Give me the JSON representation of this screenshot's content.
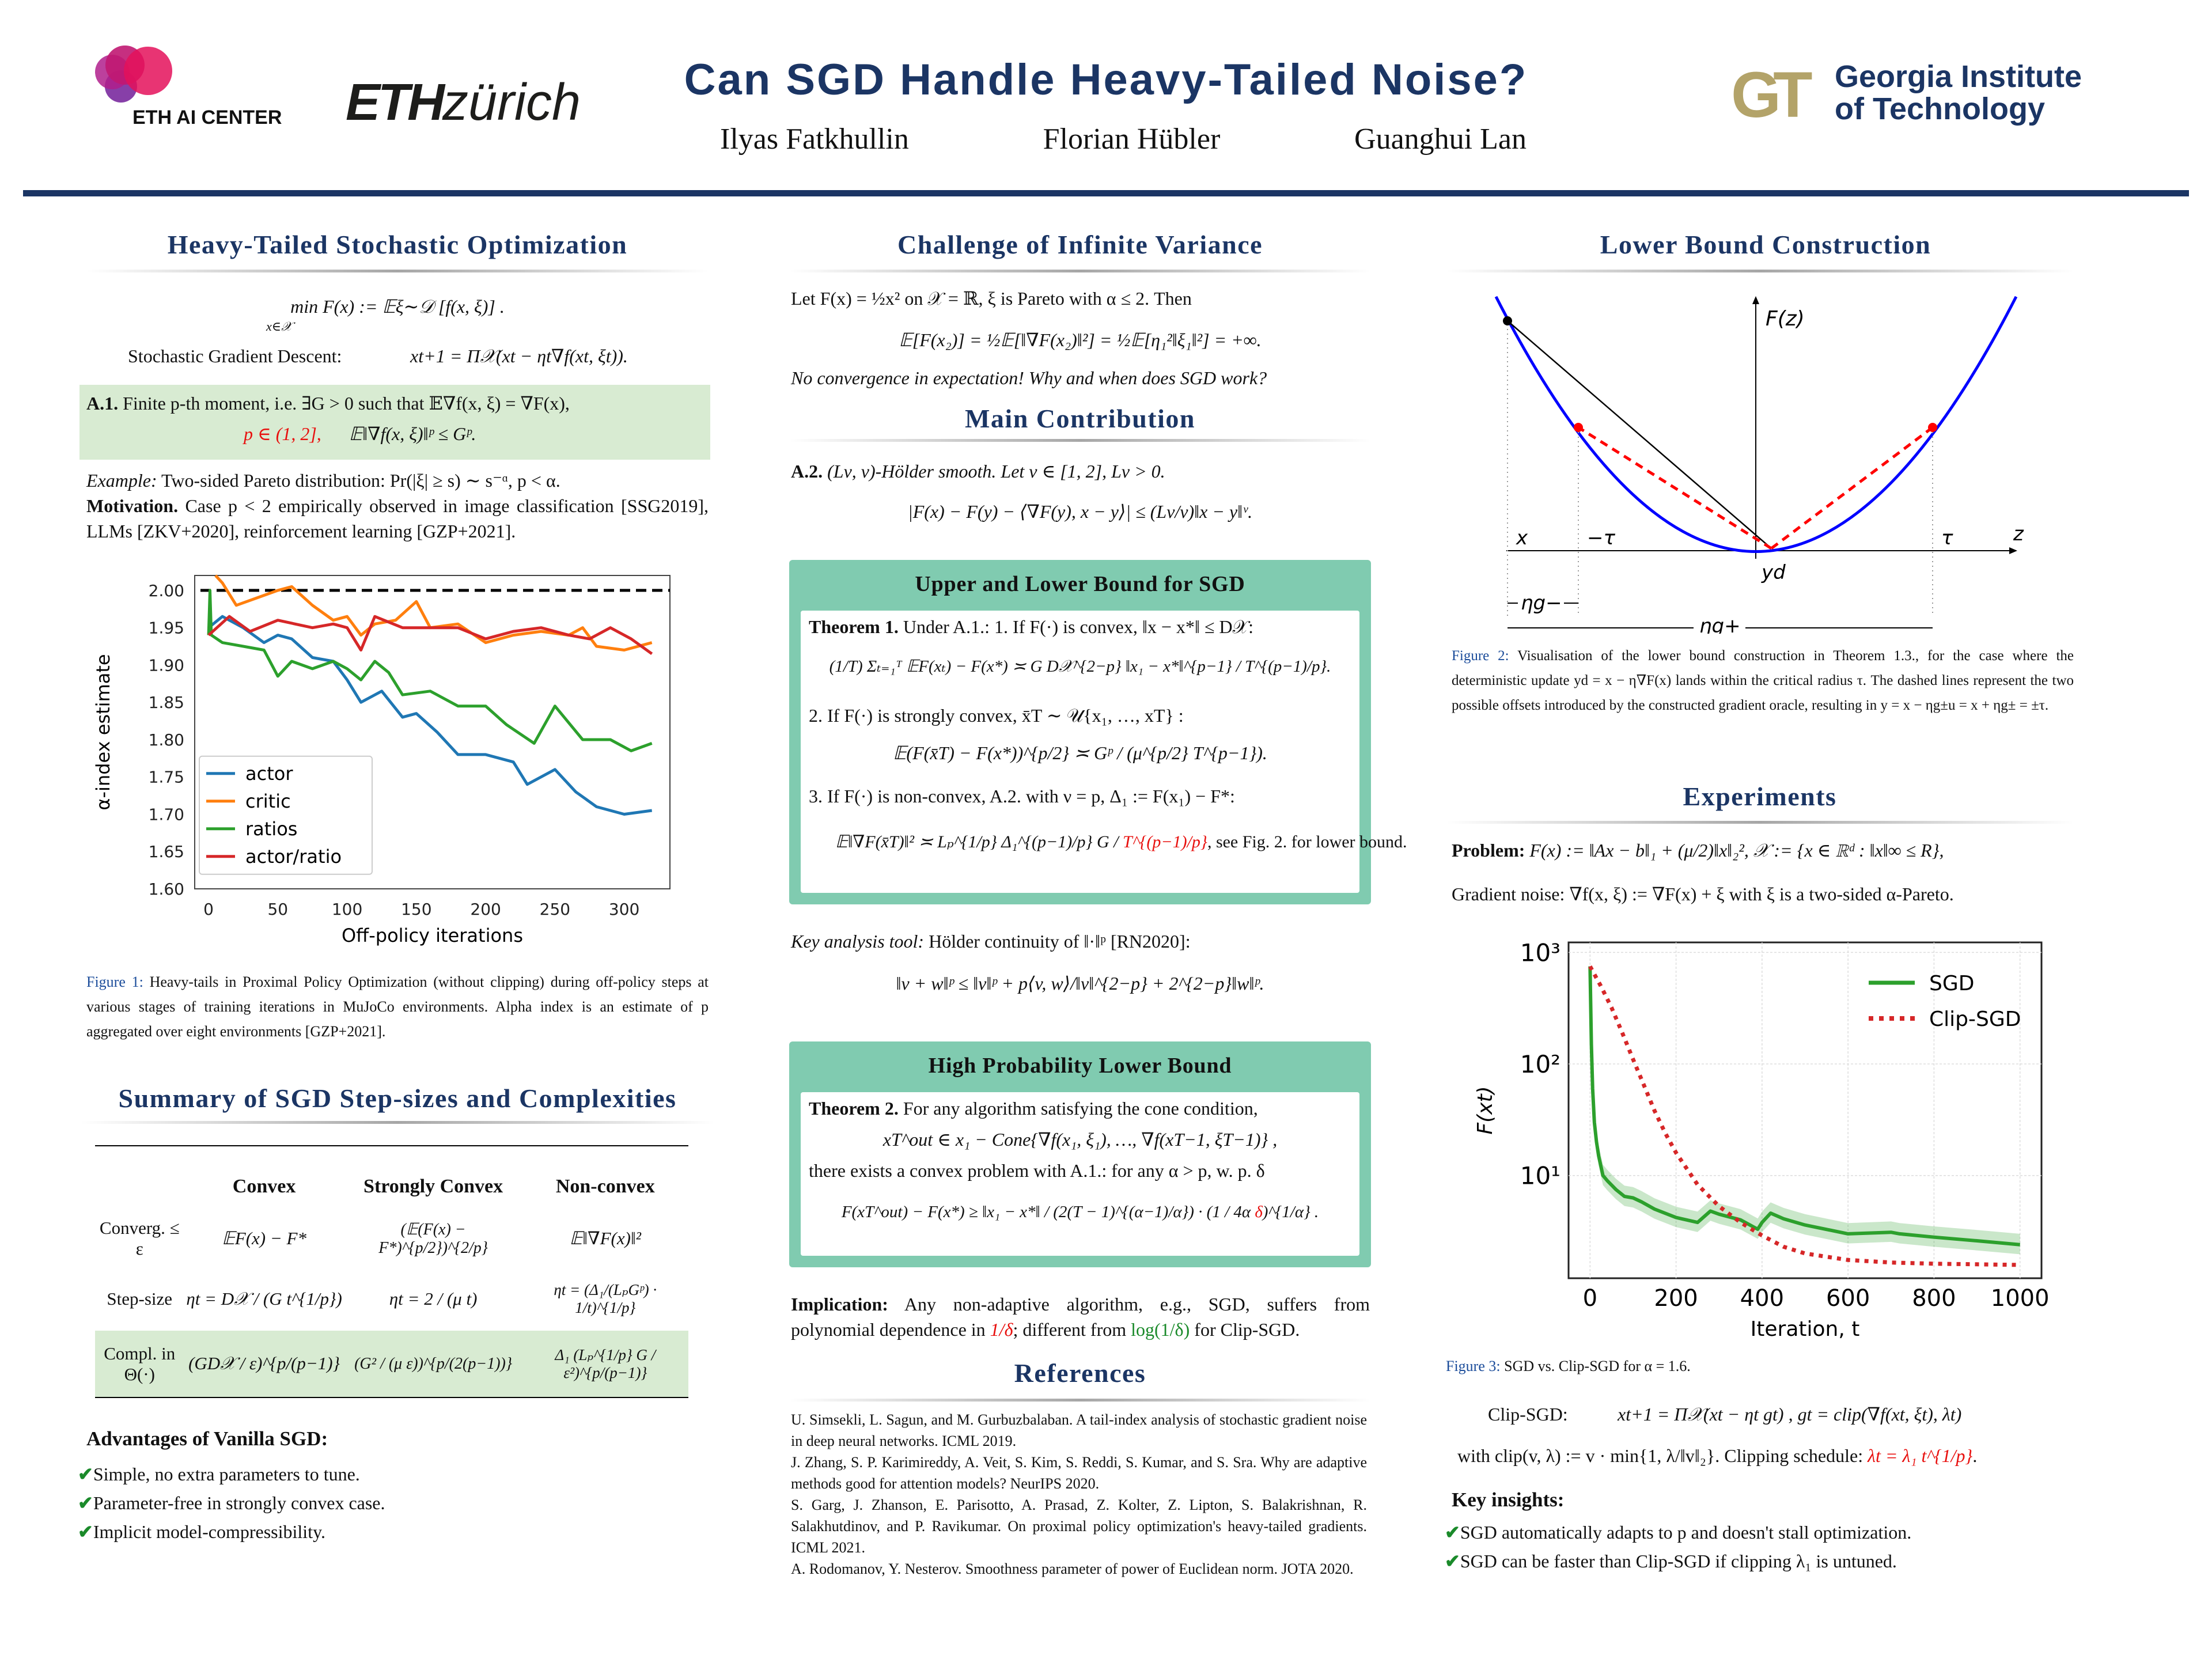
{
  "header": {
    "title": "Can SGD Handle Heavy-Tailed Noise?",
    "authors": [
      "Ilyas Fatkhullin",
      "Florian Hübler",
      "Guanghui Lan"
    ],
    "logos": {
      "eth_ai_center": "ETH AI CENTER",
      "eth_zurich_bold": "ETH",
      "eth_zurich_light": "zürich",
      "gt_mark": "GT",
      "gt_name_1": "Georgia Institute",
      "gt_name_2": "of Technology"
    },
    "colors": {
      "navy": "#1b3564",
      "gold": "#b3a369",
      "teal": "#80cbb0",
      "green_box": "#d8ebd2"
    }
  },
  "col1": {
    "title": "Heavy-Tailed Stochastic Optimization",
    "eq_min": "min    F(x) := 𝔼ξ∼𝒟 [f(x, ξ)] .",
    "eq_min_sub": "x∈𝒳",
    "sgd_label": "Stochastic Gradient Descent:",
    "sgd_eq": "xt+1 = Π𝒳(xt − ηt∇f(xt, ξt)).",
    "a1_label": "A.1.",
    "a1_text": "Finite p-th moment, i.e. ∃G > 0 such that 𝔼∇f(x, ξ) = ∇F(x),",
    "a1_red": "p ∈ (1, 2],",
    "a1_eq": "𝔼‖∇f(x, ξ)‖ᵖ ≤ Gᵖ.",
    "example_label": "Example:",
    "example_text": "Two-sided Pareto distribution: Pr(|ξ| ≥ s) ∼ s⁻ᵅ, p < α.",
    "motivation_label": "Motivation.",
    "motivation_text": "Case p < 2 empirically observed in image classification [SSG2019], LLMs [ZKV+2020], reinforcement learning [GZP+2021].",
    "fig1_label": "Figure 1:",
    "fig1_caption": "Heavy-tails in Proximal Policy Optimization (without clipping) during off-policy steps at various stages of training iterations in MuJoCo environments. Alpha index is an estimate of p aggregated over eight environments [GZP+2021].",
    "summary_title": "Summary of SGD Step-sizes and Complexities",
    "table": {
      "headers": [
        "",
        "Convex",
        "Strongly Convex",
        "Non-convex"
      ],
      "rows": [
        {
          "label": "Converg. ≤ ε",
          "cells": [
            "𝔼F(x) − F*",
            "(𝔼(F(x) − F*)^{p/2})^{2/p}",
            "𝔼‖∇F(x)‖²"
          ]
        },
        {
          "label": "Step-size",
          "cells": [
            "ηt = D𝒳 / (G t^{1/p})",
            "ηt = 2 / (μ t)",
            "ηt = (Δ₁/(LₚGᵖ) · 1/t)^{1/p}"
          ]
        },
        {
          "label": "Compl. in Θ(·)",
          "cells": [
            "(GD𝒳 / ε)^{p/(p−1)}",
            "(G² / (μ ε))^{p/(2(p−1))}",
            "Δ₁ (Lₚ^{1/p} G / ε²)^{p/(p−1)}"
          ]
        }
      ]
    },
    "advantages_title": "Advantages of Vanilla SGD:",
    "advantages": [
      "Simple, no extra parameters to tune.",
      "Parameter-free in strongly convex case.",
      "Implicit model-compressibility."
    ]
  },
  "col2": {
    "title": "Challenge of Infinite Variance",
    "let_line": "Let F(x) = ½x² on 𝒳 = ℝ, ξ is Pareto with α ≤ 2. Then",
    "exp_eq": "𝔼[F(x₂)] = ½𝔼[‖∇F(x₂)‖²] = ½𝔼[η₁²‖ξ₁‖²] = +∞.",
    "no_conv": "No convergence in expectation! Why and when does SGD work?",
    "main_title": "Main Contribution",
    "a2_label": "A.2.",
    "a2_text": "(Lν, ν)-Hölder smooth. Let ν ∈ [1, 2], Lν > 0.",
    "a2_eq": "|F(x) − F(y) − ⟨∇F(y), x − y⟩| ≤ (Lν/ν)‖x − y‖ᵛ.",
    "box1_title": "Upper and Lower Bound for SGD",
    "thm1_label": "Theorem 1.",
    "thm1_intro": "Under A.1.: 1. If F(·) is convex, ‖x − x*‖ ≤ D𝒳:",
    "thm1_eq1": "(1/T) Σₜ₌₁ᵀ 𝔼F(xₜ) − F(x*) ≍ G D𝒳^{2−p} ‖x₁ − x*‖^{p−1} / T^{(p−1)/p}.",
    "thm1_item2": "2. If F(·) is strongly convex, x̄T ∼ 𝒰{x₁, …, xT} :",
    "thm1_eq2": "𝔼(F(x̄T) − F(x*))^{p/2} ≍ Gᵖ / (μ^{p/2} T^{p−1}).",
    "thm1_item3": "3. If F(·) is non-convex, A.2. with ν = p, Δ₁ := F(x₁) − F*:",
    "thm1_eq3": "𝔼‖∇F(x̄T)‖² ≍ Lₚ^{1/p} Δ₁^{(p−1)/p} G /",
    "thm1_eq3_red": "T^{(p−1)/p}",
    "thm1_eq3_tail": ",   see Fig. 2. for lower bound.",
    "key_tool_label": "Key analysis tool:",
    "key_tool_text": "Hölder continuity of ‖·‖ᵖ [RN2020]:",
    "key_tool_eq": "‖v + w‖ᵖ ≤ ‖v‖ᵖ + p⟨v, w⟩/‖v‖^{2−p} + 2^{2−p}‖w‖ᵖ.",
    "box2_title": "High Probability Lower Bound",
    "thm2_label": "Theorem 2.",
    "thm2_intro": "For any algorithm satisfying the cone condition,",
    "thm2_eq1": "xT^out ∈ x₁ − Cone{∇f(x₁, ξ₁), …, ∇f(xT−1, ξT−1)} ,",
    "thm2_line": "there exists a convex problem with A.1.: for any α > p, w. p.  δ",
    "thm2_eq2": "F(xT^out) − F(x*) ≥ ‖x₁ − x*‖ / (2(T − 1)^{(α−1)/α}) · (1 / 4α",
    "thm2_eq2_red": "δ",
    "thm2_eq2_tail": ")^{1/α} .",
    "impl_label": "Implication:",
    "impl_text_1": "Any non-adaptive algorithm, e.g., SGD, suffers from polynomial dependence in",
    "impl_red": "1/δ",
    "impl_text_2": "; different from",
    "impl_green": "log(1/δ)",
    "impl_text_3": "for Clip-SGD.",
    "refs_title": "References",
    "refs": [
      "U. Simsekli, L. Sagun, and M. Gurbuzbalaban. A tail-index analysis of stochastic gradient noise in deep neural networks. ICML 2019.",
      "J. Zhang, S. P. Karimireddy, A. Veit, S. Kim, S. Reddi, S. Kumar, and S. Sra. Why are adaptive methods good for attention models? NeurIPS 2020.",
      "S. Garg, J. Zhanson, E. Parisotto, A. Prasad, Z. Kolter, Z. Lipton, S. Balakrishnan, R. Salakhutdinov, and P. Ravikumar. On proximal policy optimization's heavy-tailed gradients. ICML 2021.",
      "A. Rodomanov, Y. Nesterov. Smoothness parameter of power of Euclidean norm. JOTA 2020."
    ]
  },
  "col3": {
    "title": "Lower Bound Construction",
    "figure2": {
      "labels": {
        "fz": "F(z)",
        "x": "x",
        "neg_tau": "−τ",
        "tau": "τ",
        "z": "z",
        "yd": "yd",
        "eta_g_minus": "ηg−",
        "eta_g_plus": "ηg+"
      }
    },
    "fig2_label": "Figure 2:",
    "fig2_caption": "Visualisation of the lower bound construction in Theorem 1.3., for the case where the deterministic update yd = x − η∇F(x) lands within the critical radius τ. The dashed lines represent the two possible offsets introduced by the constructed gradient oracle, resulting in y = x − ηg±u = x + ηg± = ±τ.",
    "exp_title": "Experiments",
    "problem_label": "Problem:",
    "problem_text": "F(x) := ‖Ax − b‖₁ + (μ/2)‖x‖₂²,   𝒳 := {x ∈ ℝᵈ : ‖x‖∞ ≤ R},",
    "noise_text": "Gradient noise: ∇f(x, ξ) := ∇F(x) + ξ with ξ is a two-sided α-Pareto.",
    "fig3_label": "Figure 3:",
    "fig3_caption": "SGD vs. Clip-SGD for α = 1.6.",
    "clip_label": "Clip-SGD:",
    "clip_eq": "xt+1 = Π𝒳(xt − ηt gt) ,    gt = clip(∇f(xt, ξt), λt)",
    "clip_def": "with clip(v, λ) := v · min{1, λ/‖v‖₂}. Clipping schedule:",
    "clip_sched": "λt = λ₁ t^{1/p}",
    "insights_title": "Key insights:",
    "insights": [
      "SGD automatically adapts to p and doesn't stall optimization.",
      "SGD can be faster than Clip-SGD if clipping λ₁ is untuned."
    ]
  },
  "chart_data": [
    {
      "type": "line",
      "title": "",
      "xlabel": "Off-policy iterations",
      "ylabel": "α-index estimate",
      "xlim": [
        -10,
        333
      ],
      "ylim": [
        1.6,
        2.02
      ],
      "xticks": [
        0,
        50,
        100,
        150,
        200,
        250,
        300
      ],
      "xtick_labels": [
        "0",
        "50",
        "100",
        "150",
        "200",
        "250",
        "300"
      ],
      "yticks": [
        1.6,
        1.65,
        1.7,
        1.75,
        1.8,
        1.85,
        1.9,
        1.95,
        2.0
      ],
      "ytick_labels": [
        "1.60",
        "1.65",
        "1.70",
        "1.75",
        "1.80",
        "1.85",
        "1.90",
        "1.95",
        "2.00"
      ],
      "reference_line": {
        "y": 2.0,
        "style": "dashed",
        "color": "#000000"
      },
      "legend_position": "lower-left",
      "series": [
        {
          "name": "actor",
          "color": "#1f77b4",
          "x": [
            0,
            10,
            25,
            40,
            50,
            60,
            75,
            90,
            100,
            110,
            125,
            140,
            150,
            165,
            180,
            200,
            220,
            230,
            250,
            265,
            280,
            300,
            320
          ],
          "y": [
            1.95,
            1.965,
            1.95,
            1.93,
            1.94,
            1.935,
            1.91,
            1.905,
            1.88,
            1.85,
            1.865,
            1.83,
            1.835,
            1.81,
            1.78,
            1.78,
            1.77,
            1.74,
            1.76,
            1.73,
            1.71,
            1.7,
            1.705
          ]
        },
        {
          "name": "critic",
          "color": "#ff7f0e",
          "x": [
            5,
            10,
            20,
            35,
            50,
            60,
            75,
            90,
            100,
            110,
            120,
            135,
            150,
            160,
            180,
            200,
            220,
            240,
            260,
            270,
            280,
            300,
            320
          ],
          "y": [
            2.02,
            2.01,
            1.98,
            1.99,
            2.0,
            2.005,
            1.98,
            1.96,
            1.965,
            1.94,
            1.955,
            1.96,
            1.985,
            1.95,
            1.955,
            1.93,
            1.94,
            1.945,
            1.94,
            1.95,
            1.925,
            1.92,
            1.93
          ]
        },
        {
          "name": "ratios",
          "color": "#2ca02c",
          "x": [
            0,
            1,
            2,
            10,
            25,
            40,
            50,
            60,
            75,
            90,
            100,
            110,
            120,
            130,
            140,
            160,
            180,
            200,
            215,
            235,
            250,
            270,
            290,
            305,
            320
          ],
          "y": [
            1.94,
            2.0,
            1.94,
            1.93,
            1.925,
            1.92,
            1.885,
            1.905,
            1.895,
            1.905,
            1.895,
            1.88,
            1.905,
            1.89,
            1.86,
            1.865,
            1.845,
            1.845,
            1.82,
            1.795,
            1.845,
            1.8,
            1.8,
            1.785,
            1.795
          ]
        },
        {
          "name": "actor/ratio",
          "color": "#d62728",
          "x": [
            0,
            15,
            30,
            50,
            75,
            90,
            100,
            110,
            120,
            140,
            160,
            180,
            200,
            220,
            240,
            260,
            275,
            290,
            305,
            320
          ],
          "y": [
            1.94,
            1.965,
            1.945,
            1.96,
            1.95,
            1.955,
            1.95,
            1.92,
            1.965,
            1.95,
            1.95,
            1.95,
            1.935,
            1.945,
            1.95,
            1.94,
            1.935,
            1.95,
            1.935,
            1.915
          ]
        }
      ]
    },
    {
      "type": "line",
      "title": "",
      "xlabel": "Iteration, t",
      "ylabel": "F(xt)",
      "yscale": "log",
      "xlim": [
        -50,
        1050
      ],
      "ylim": [
        1.2,
        1230
      ],
      "xticks": [
        0,
        200,
        400,
        600,
        800,
        1000
      ],
      "xtick_labels": [
        "0",
        "200",
        "400",
        "600",
        "800",
        "1000"
      ],
      "yticks": [
        10,
        100,
        1000
      ],
      "ytick_labels": [
        "10¹",
        "10²",
        "10³"
      ],
      "grid": true,
      "legend_position": "top-right",
      "series": [
        {
          "name": "SGD",
          "color": "#2ca02c",
          "style": "solid",
          "band": true,
          "x": [
            0,
            3,
            6,
            10,
            15,
            20,
            30,
            40,
            60,
            80,
            100,
            120,
            150,
            200,
            250,
            280,
            300,
            350,
            390,
            400,
            420,
            450,
            500,
            600,
            700,
            720,
            800,
            900,
            1000
          ],
          "y": [
            750,
            150,
            60,
            30,
            20,
            15,
            10,
            9,
            7.5,
            6.5,
            6.3,
            5.8,
            5,
            4.2,
            3.8,
            4.8,
            4.5,
            4,
            3.3,
            3.8,
            4.6,
            4.1,
            3.6,
            3,
            3.1,
            3,
            2.8,
            2.6,
            2.4
          ]
        },
        {
          "name": "Clip-SGD",
          "color": "#d62728",
          "style": "dotted",
          "x": [
            0,
            25,
            50,
            75,
            100,
            125,
            150,
            175,
            200,
            250,
            300,
            350,
            400,
            450,
            500,
            600,
            700,
            800,
            900,
            1000
          ],
          "y": [
            750,
            500,
            320,
            190,
            110,
            65,
            38,
            24,
            16,
            8.3,
            5.3,
            3.8,
            2.9,
            2.3,
            2.0,
            1.75,
            1.66,
            1.62,
            1.6,
            1.58
          ]
        }
      ]
    }
  ]
}
